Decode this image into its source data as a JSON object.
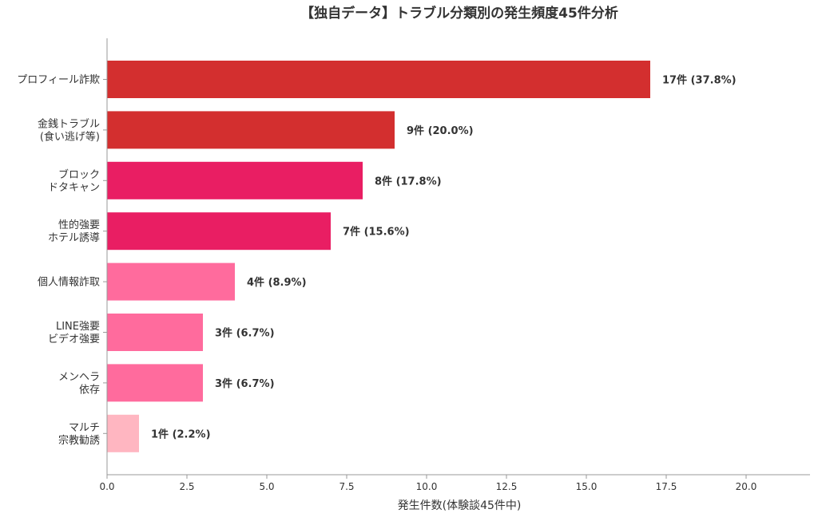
{
  "chart_data": {
    "type": "bar",
    "orientation": "horizontal",
    "title": "【独自データ】トラブル分類別の発生頻度45件分析",
    "xlabel": "発生件数(体験談45件中)",
    "ylabel": "",
    "xlim": [
      0,
      22
    ],
    "x_ticks": [
      0.0,
      2.5,
      5.0,
      7.5,
      10.0,
      12.5,
      15.0,
      17.5,
      20.0
    ],
    "x_tick_labels": [
      "0.0",
      "2.5",
      "5.0",
      "7.5",
      "10.0",
      "12.5",
      "15.0",
      "17.5",
      "20.0"
    ],
    "grid": false,
    "legend": "none",
    "categories": [
      [
        "プロフィール詐欺"
      ],
      [
        "金銭トラブル",
        "(食い逃げ等)"
      ],
      [
        "ブロック",
        "ドタキャン"
      ],
      [
        "性的強要",
        "ホテル誘導"
      ],
      [
        "個人情報詐取"
      ],
      [
        "LINE強要",
        "ビデオ強要"
      ],
      [
        "メンヘラ",
        "依存"
      ],
      [
        "マルチ",
        "宗教勧誘"
      ]
    ],
    "values": [
      17,
      9,
      8,
      7,
      4,
      3,
      3,
      1
    ],
    "data_labels": [
      "17件 (37.8%)",
      "9件 (20.0%)",
      "8件 (17.8%)",
      "7件 (15.6%)",
      "4件 (8.9%)",
      "3件 (6.7%)",
      "3件 (6.7%)",
      "1件 (2.2%)"
    ],
    "bar_colors": [
      "#d32f2f",
      "#d32f2f",
      "#e91e63",
      "#e91e63",
      "#ff6b9d",
      "#ff6b9d",
      "#ff6b9d",
      "#ffb6c1"
    ],
    "axis_color": "#999999",
    "text_color": "#333333"
  }
}
